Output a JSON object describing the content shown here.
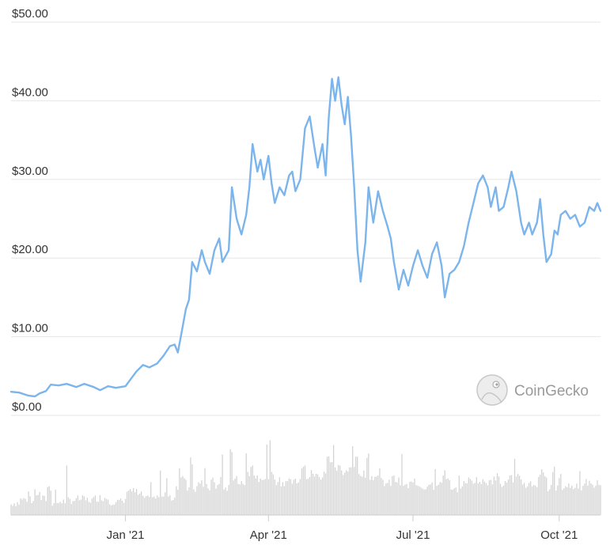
{
  "chart_data": {
    "type": "line",
    "title": "",
    "xlabel": "",
    "ylabel": "",
    "colors": {
      "price_line": "#7cb5ec",
      "volume_bar": "#d2d2d2",
      "grid": "#e6e6e6"
    },
    "grid": true,
    "legend": "none",
    "watermark": "CoinGecko",
    "y_axis": {
      "ylim": [
        0,
        50
      ],
      "ticks": [
        0,
        10,
        20,
        30,
        40,
        50
      ],
      "tick_labels": [
        "$0.00",
        "$10.00",
        "$20.00",
        "$30.00",
        "$40.00",
        "$50.00"
      ]
    },
    "x_axis": {
      "range": [
        "2020-10-21",
        "2021-10-27"
      ],
      "ticks": [
        "2021-01-01",
        "2021-04-01",
        "2021-07-01",
        "2021-10-01"
      ],
      "tick_labels": [
        "Jan '21",
        "Apr '21",
        "Jul '21",
        "Oct '21"
      ]
    },
    "series": [
      {
        "points": [
          [
            "2020-10-21",
            3.0
          ],
          [
            "2020-10-26",
            2.9
          ],
          [
            "2020-11-01",
            2.5
          ],
          [
            "2020-11-05",
            2.4
          ],
          [
            "2020-11-08",
            2.8
          ],
          [
            "2020-11-12",
            3.1
          ],
          [
            "2020-11-15",
            3.9
          ],
          [
            "2020-11-20",
            3.8
          ],
          [
            "2020-11-25",
            4.0
          ],
          [
            "2020-12-01",
            3.6
          ],
          [
            "2020-12-06",
            4.0
          ],
          [
            "2020-12-12",
            3.6
          ],
          [
            "2020-12-16",
            3.2
          ],
          [
            "2020-12-21",
            3.7
          ],
          [
            "2020-12-26",
            3.5
          ],
          [
            "2021-01-01",
            3.7
          ],
          [
            "2021-01-05",
            4.8
          ],
          [
            "2021-01-08",
            5.6
          ],
          [
            "2021-01-12",
            6.4
          ],
          [
            "2021-01-16",
            6.1
          ],
          [
            "2021-01-21",
            6.6
          ],
          [
            "2021-01-25",
            7.6
          ],
          [
            "2021-01-29",
            8.8
          ],
          [
            "2021-02-01",
            9.0
          ],
          [
            "2021-02-03",
            8.0
          ],
          [
            "2021-02-05",
            10.2
          ],
          [
            "2021-02-08",
            13.5
          ],
          [
            "2021-02-10",
            14.7
          ],
          [
            "2021-02-12",
            19.5
          ],
          [
            "2021-02-15",
            18.3
          ],
          [
            "2021-02-18",
            21.0
          ],
          [
            "2021-02-20",
            19.5
          ],
          [
            "2021-02-23",
            18.0
          ],
          [
            "2021-02-26",
            21.0
          ],
          [
            "2021-03-01",
            22.5
          ],
          [
            "2021-03-03",
            19.5
          ],
          [
            "2021-03-07",
            21.0
          ],
          [
            "2021-03-09",
            29.0
          ],
          [
            "2021-03-12",
            25.0
          ],
          [
            "2021-03-15",
            23.0
          ],
          [
            "2021-03-18",
            25.5
          ],
          [
            "2021-03-20",
            29.0
          ],
          [
            "2021-03-22",
            34.5
          ],
          [
            "2021-03-25",
            31.0
          ],
          [
            "2021-03-27",
            32.5
          ],
          [
            "2021-03-29",
            30.0
          ],
          [
            "2021-04-01",
            33.0
          ],
          [
            "2021-04-03",
            29.5
          ],
          [
            "2021-04-05",
            27.0
          ],
          [
            "2021-04-08",
            29.0
          ],
          [
            "2021-04-11",
            28.0
          ],
          [
            "2021-04-14",
            30.5
          ],
          [
            "2021-04-16",
            31.0
          ],
          [
            "2021-04-18",
            28.5
          ],
          [
            "2021-04-21",
            30.0
          ],
          [
            "2021-04-24",
            36.5
          ],
          [
            "2021-04-27",
            38.0
          ],
          [
            "2021-04-30",
            34.0
          ],
          [
            "2021-05-02",
            31.5
          ],
          [
            "2021-05-05",
            34.5
          ],
          [
            "2021-05-07",
            30.5
          ],
          [
            "2021-05-09",
            38.0
          ],
          [
            "2021-05-11",
            42.8
          ],
          [
            "2021-05-13",
            40.0
          ],
          [
            "2021-05-15",
            43.0
          ],
          [
            "2021-05-17",
            39.5
          ],
          [
            "2021-05-19",
            37.0
          ],
          [
            "2021-05-21",
            40.5
          ],
          [
            "2021-05-23",
            35.5
          ],
          [
            "2021-05-25",
            29.0
          ],
          [
            "2021-05-27",
            21.0
          ],
          [
            "2021-05-29",
            17.0
          ],
          [
            "2021-06-01",
            22.0
          ],
          [
            "2021-06-03",
            29.0
          ],
          [
            "2021-06-06",
            24.5
          ],
          [
            "2021-06-09",
            28.5
          ],
          [
            "2021-06-12",
            26.0
          ],
          [
            "2021-06-15",
            24.0
          ],
          [
            "2021-06-17",
            22.5
          ],
          [
            "2021-06-19",
            19.5
          ],
          [
            "2021-06-22",
            16.0
          ],
          [
            "2021-06-25",
            18.5
          ],
          [
            "2021-06-28",
            16.5
          ],
          [
            "2021-07-01",
            19.0
          ],
          [
            "2021-07-04",
            21.0
          ],
          [
            "2021-07-07",
            19.0
          ],
          [
            "2021-07-10",
            17.5
          ],
          [
            "2021-07-13",
            20.5
          ],
          [
            "2021-07-16",
            22.0
          ],
          [
            "2021-07-19",
            19.0
          ],
          [
            "2021-07-21",
            15.0
          ],
          [
            "2021-07-24",
            18.0
          ],
          [
            "2021-07-27",
            18.5
          ],
          [
            "2021-07-30",
            19.5
          ],
          [
            "2021-08-02",
            21.5
          ],
          [
            "2021-08-05",
            24.5
          ],
          [
            "2021-08-08",
            27.0
          ],
          [
            "2021-08-11",
            29.5
          ],
          [
            "2021-08-14",
            30.5
          ],
          [
            "2021-08-17",
            29.0
          ],
          [
            "2021-08-19",
            26.5
          ],
          [
            "2021-08-22",
            29.0
          ],
          [
            "2021-08-24",
            26.0
          ],
          [
            "2021-08-27",
            26.5
          ],
          [
            "2021-08-30",
            29.0
          ],
          [
            "2021-09-01",
            31.0
          ],
          [
            "2021-09-04",
            28.5
          ],
          [
            "2021-09-07",
            24.5
          ],
          [
            "2021-09-09",
            23.0
          ],
          [
            "2021-09-12",
            24.5
          ],
          [
            "2021-09-14",
            23.0
          ],
          [
            "2021-09-17",
            24.5
          ],
          [
            "2021-09-19",
            27.5
          ],
          [
            "2021-09-21",
            23.0
          ],
          [
            "2021-09-23",
            19.5
          ],
          [
            "2021-09-26",
            20.5
          ],
          [
            "2021-09-28",
            23.5
          ],
          [
            "2021-09-30",
            23.0
          ],
          [
            "2021-10-02",
            25.5
          ],
          [
            "2021-10-05",
            26.0
          ],
          [
            "2021-10-08",
            25.0
          ],
          [
            "2021-10-11",
            25.5
          ],
          [
            "2021-10-14",
            24.0
          ],
          [
            "2021-10-17",
            24.5
          ],
          [
            "2021-10-20",
            26.5
          ],
          [
            "2021-10-23",
            26.0
          ],
          [
            "2021-10-25",
            27.0
          ],
          [
            "2021-10-27",
            26.0
          ]
        ]
      }
    ]
  }
}
